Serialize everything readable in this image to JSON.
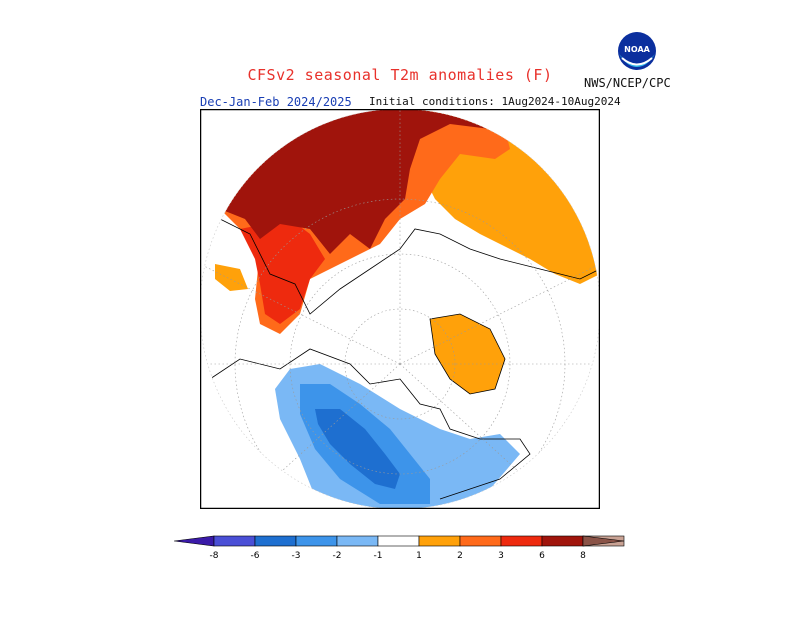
{
  "header": {
    "title": "CFSv2 seasonal T2m anomalies (F)",
    "period": "Dec-Jan-Feb 2024/2025",
    "initial_conditions": "Initial conditions: 1Aug2024-10Aug2024",
    "agency": "NWS/NCEP/CPC",
    "logo_text": "NOAA"
  },
  "colors": {
    "cold_8": "#3a1aa8",
    "cold_6": "#4a4fd6",
    "cold_3": "#1e6fd0",
    "cold_2": "#3d94ea",
    "cold_1": "#7ab8f5",
    "neutral": "#ffffff",
    "warm_1": "#ffa10a",
    "warm_2": "#ff6a1a",
    "warm_3": "#ee2a0e",
    "warm_6": "#a0140c",
    "warm_8": "#c9a294",
    "warm_beyond": "#8a5347"
  },
  "colorbar": {
    "labels": [
      "-8",
      "-6",
      "-3",
      "-2",
      "-1",
      "1",
      "2",
      "3",
      "6",
      "8"
    ]
  }
}
